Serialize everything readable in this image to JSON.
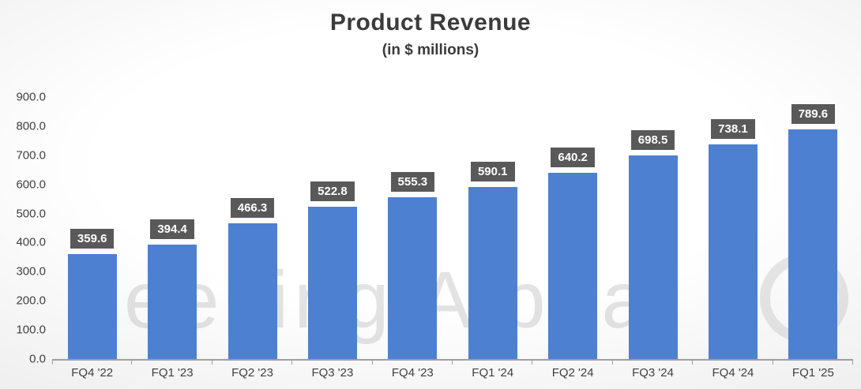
{
  "chart_data": {
    "type": "bar",
    "title": "Product Revenue",
    "subtitle": "(in $ millions)",
    "categories": [
      "FQ4 '22",
      "FQ1 '23",
      "FQ2 '23",
      "FQ3 '23",
      "FQ4 '23",
      "FQ1 '24",
      "FQ2 '24",
      "FQ3 '24",
      "FQ4 '24",
      "FQ1 '25"
    ],
    "values": [
      359.6,
      394.4,
      466.3,
      522.8,
      555.3,
      590.1,
      640.2,
      698.5,
      738.1,
      789.6
    ],
    "data_labels": [
      "359.6",
      "394.4",
      "466.3",
      "522.8",
      "555.3",
      "590.1",
      "640.2",
      "698.5",
      "738.1",
      "789.6"
    ],
    "xlabel": "",
    "ylabel": "",
    "ylim": [
      0,
      900
    ],
    "y_ticks": [
      "0.0",
      "100.0",
      "200.0",
      "300.0",
      "400.0",
      "500.0",
      "600.0",
      "700.0",
      "800.0",
      "900.0"
    ],
    "grid": false,
    "legend_position": "none",
    "bar_color": "#4e80d2",
    "label_bg_color": "#595959",
    "label_text_color": "#ffffff"
  },
  "watermark": {
    "text": "Seeking Alpha"
  }
}
